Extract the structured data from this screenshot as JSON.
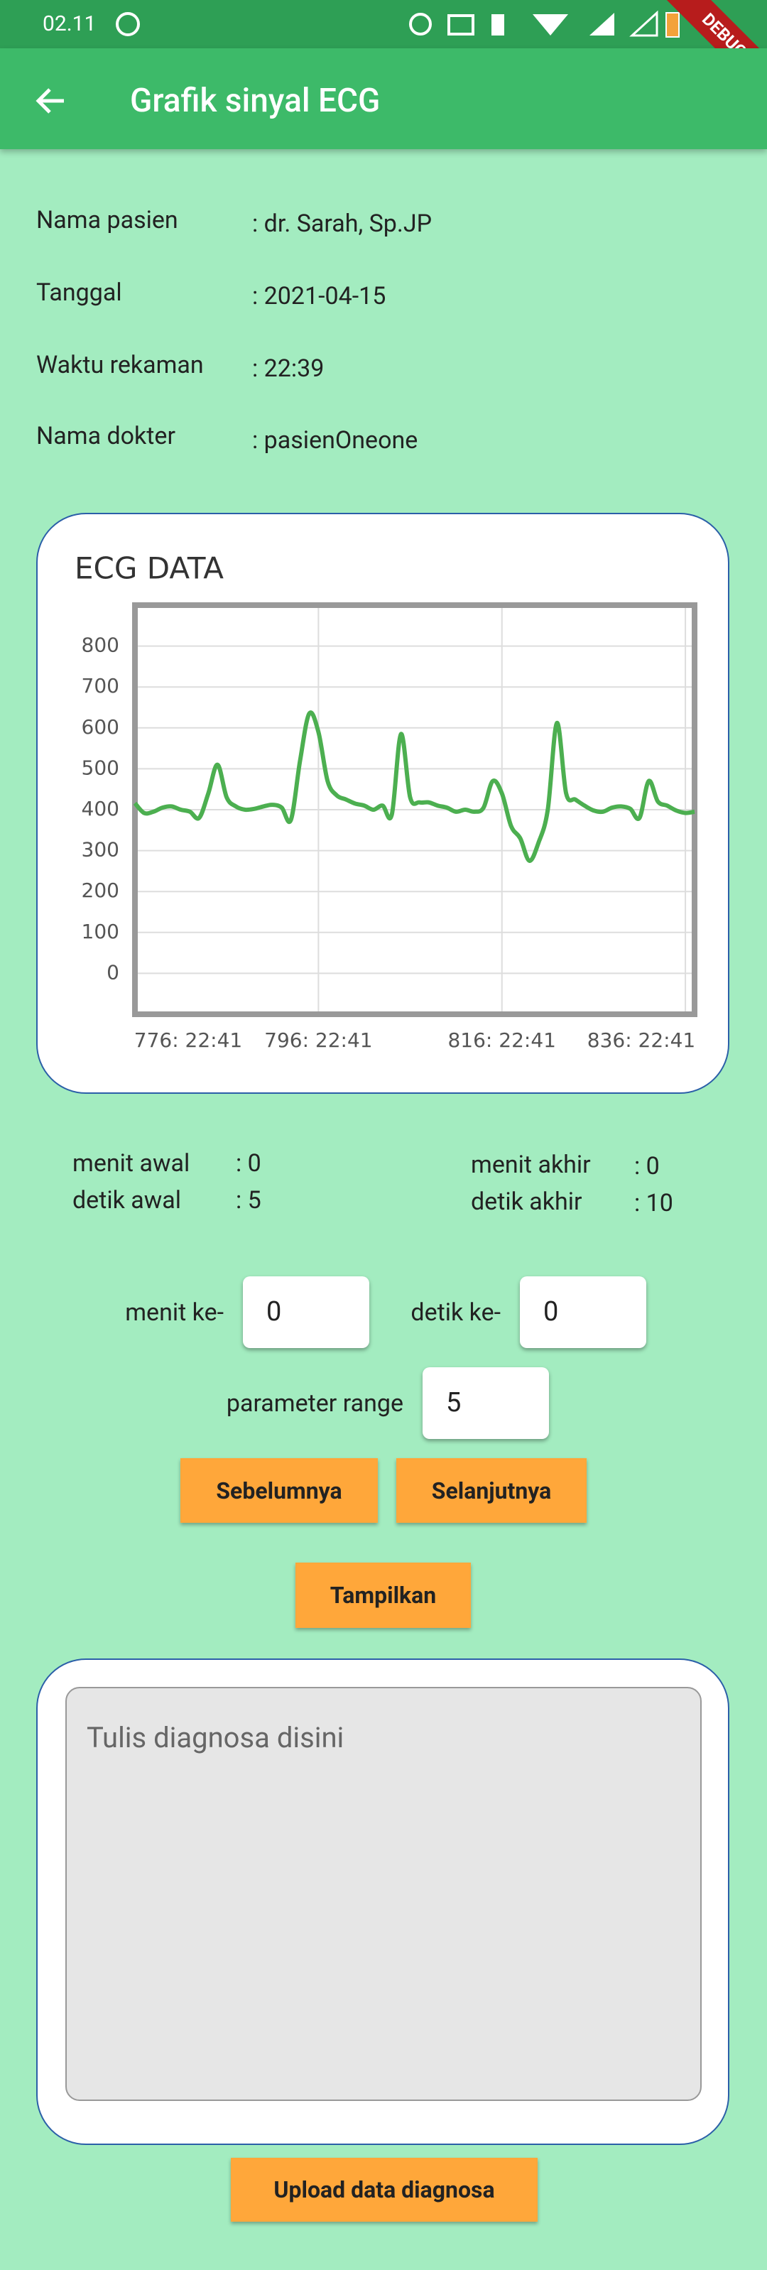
{
  "status_bar": {
    "time": "02.11"
  },
  "debug_banner": "DEBUG",
  "app_bar": {
    "title": "Grafik sinyal ECG"
  },
  "patient_info": {
    "rows": [
      {
        "label": "Nama pasien",
        "value": ": dr. Sarah, Sp.JP"
      },
      {
        "label": "Tanggal",
        "value": ": 2021-04-15"
      },
      {
        "label": "Waktu rekaman",
        "value": ": 22:39"
      },
      {
        "label": "Nama dokter",
        "value": ": pasienOneone"
      }
    ]
  },
  "chart_data": {
    "type": "line",
    "title": "ECG DATA",
    "color": "#4caf50",
    "x": [
      776,
      777,
      778,
      779,
      780,
      781,
      782,
      783,
      784,
      785,
      786,
      787,
      788,
      789,
      790,
      791,
      792,
      793,
      794,
      795,
      796,
      797,
      798,
      799,
      800,
      801,
      802,
      803,
      804,
      805,
      806,
      807,
      808,
      809,
      810,
      811,
      812,
      813,
      814,
      815,
      816,
      817,
      818,
      819,
      820,
      821,
      822,
      823,
      824,
      825,
      826,
      827,
      828,
      829,
      830,
      831,
      832,
      833,
      834,
      835,
      836,
      837
    ],
    "values": [
      416,
      392,
      395,
      405,
      408,
      400,
      395,
      380,
      440,
      510,
      430,
      408,
      400,
      402,
      408,
      412,
      405,
      375,
      520,
      635,
      590,
      470,
      435,
      425,
      415,
      410,
      400,
      410,
      388,
      585,
      430,
      418,
      418,
      410,
      405,
      395,
      400,
      395,
      405,
      470,
      440,
      360,
      330,
      275,
      320,
      400,
      612,
      440,
      425,
      410,
      398,
      395,
      405,
      408,
      402,
      380,
      470,
      420,
      410,
      398,
      392,
      395
    ],
    "xlim": [
      776,
      837
    ],
    "xticks": [
      {
        "value": 776,
        "label": "776: 22:41"
      },
      {
        "value": 796,
        "label": "796: 22:41"
      },
      {
        "value": 816,
        "label": "816: 22:41"
      },
      {
        "value": 836,
        "label": "836: 22:41"
      }
    ],
    "ylim": [
      -100,
      900
    ],
    "yticks": [
      0,
      100,
      200,
      300,
      400,
      500,
      600,
      700,
      800
    ],
    "grid": true
  },
  "range_info": {
    "start": [
      {
        "label": "menit awal",
        "value": ": 0"
      },
      {
        "label": "detik awal",
        "value": ": 5"
      }
    ],
    "end": [
      {
        "label": "menit akhir",
        "value": ": 0"
      },
      {
        "label": "detik akhir",
        "value": ": 10"
      }
    ]
  },
  "controls": {
    "minute_label": "menit ke-",
    "minute_value": "0",
    "second_label": "detik ke-",
    "second_value": "0",
    "range_label": "parameter range",
    "range_value": "5",
    "prev_button": "Sebelumnya",
    "next_button": "Selanjutnya",
    "show_button": "Tampilkan"
  },
  "diagnosis": {
    "placeholder": "Tulis diagnosa disini",
    "upload_button": "Upload data diagnosa"
  }
}
